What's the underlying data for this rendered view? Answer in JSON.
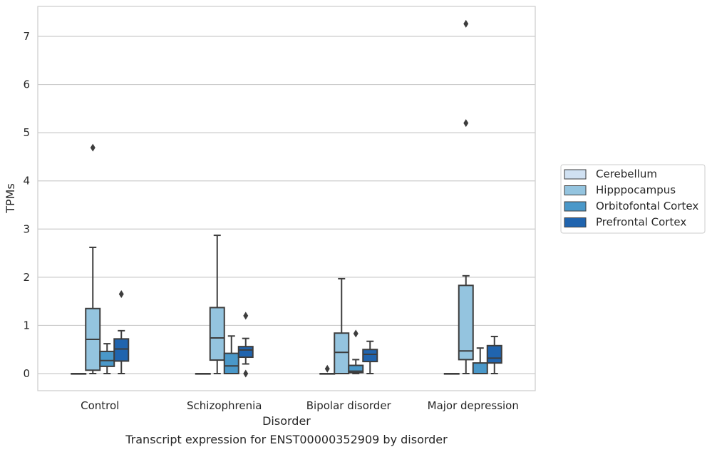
{
  "chart_data": {
    "type": "box",
    "caption": "Transcript expression for ENST00000352909 by disorder",
    "xlabel": "Disorder",
    "ylabel": "TPMs",
    "ylim": [
      -0.35,
      7.6
    ],
    "yticks": [
      "0",
      "1",
      "2",
      "3",
      "4",
      "5",
      "6",
      "7"
    ],
    "grid": true,
    "legend_position": "right",
    "categories": [
      "Control",
      "Schizophrenia",
      "Bipolar disorder",
      "Major depression"
    ],
    "series": [
      {
        "name": "Cerebellum",
        "color": "#d0e1f2",
        "boxes": [
          {
            "category": "Control",
            "q1": 0,
            "median": 0,
            "q3": 0,
            "whisker_low": 0,
            "whisker_high": 0,
            "outliers": []
          },
          {
            "category": "Schizophrenia",
            "q1": 0,
            "median": 0,
            "q3": 0,
            "whisker_low": 0,
            "whisker_high": 0,
            "outliers": []
          },
          {
            "category": "Bipolar disorder",
            "q1": 0,
            "median": 0,
            "q3": 0,
            "whisker_low": 0,
            "whisker_high": 0,
            "outliers": [
              0.1
            ]
          },
          {
            "category": "Major depression",
            "q1": 0,
            "median": 0,
            "q3": 0,
            "whisker_low": 0,
            "whisker_high": 0,
            "outliers": []
          }
        ]
      },
      {
        "name": "Hipppocampus",
        "color": "#94c4df",
        "boxes": [
          {
            "category": "Control",
            "q1": 0.07,
            "median": 0.71,
            "q3": 1.35,
            "whisker_low": 0,
            "whisker_high": 2.62,
            "outliers": [
              4.69
            ]
          },
          {
            "category": "Schizophrenia",
            "q1": 0.28,
            "median": 0.74,
            "q3": 1.37,
            "whisker_low": 0,
            "whisker_high": 2.87,
            "outliers": []
          },
          {
            "category": "Bipolar disorder",
            "q1": 0,
            "median": 0.44,
            "q3": 0.84,
            "whisker_low": 0,
            "whisker_high": 1.97,
            "outliers": []
          },
          {
            "category": "Major depression",
            "q1": 0.29,
            "median": 0.47,
            "q3": 1.83,
            "whisker_low": 0,
            "whisker_high": 2.03,
            "outliers": [
              5.2,
              7.26
            ]
          }
        ]
      },
      {
        "name": "Orbitofontal Cortex",
        "color": "#4a98c9",
        "boxes": [
          {
            "category": "Control",
            "q1": 0.15,
            "median": 0.27,
            "q3": 0.46,
            "whisker_low": 0,
            "whisker_high": 0.62,
            "outliers": []
          },
          {
            "category": "Schizophrenia",
            "q1": 0,
            "median": 0.16,
            "q3": 0.42,
            "whisker_low": 0,
            "whisker_high": 0.78,
            "outliers": []
          },
          {
            "category": "Bipolar disorder",
            "q1": 0.02,
            "median": 0.05,
            "q3": 0.17,
            "whisker_low": 0,
            "whisker_high": 0.29,
            "outliers": [
              0.83
            ]
          },
          {
            "category": "Major depression",
            "q1": 0,
            "median": 0,
            "q3": 0.22,
            "whisker_low": 0,
            "whisker_high": 0.53,
            "outliers": []
          }
        ]
      },
      {
        "name": "Prefrontal Cortex",
        "color": "#2064ae",
        "boxes": [
          {
            "category": "Control",
            "q1": 0.26,
            "median": 0.51,
            "q3": 0.72,
            "whisker_low": 0,
            "whisker_high": 0.89,
            "outliers": [
              1.65
            ]
          },
          {
            "category": "Schizophrenia",
            "q1": 0.34,
            "median": 0.49,
            "q3": 0.56,
            "whisker_low": 0.2,
            "whisker_high": 0.73,
            "outliers": [
              1.2,
              0
            ]
          },
          {
            "category": "Bipolar disorder",
            "q1": 0.25,
            "median": 0.4,
            "q3": 0.5,
            "whisker_low": 0,
            "whisker_high": 0.67,
            "outliers": []
          },
          {
            "category": "Major depression",
            "q1": 0.22,
            "median": 0.32,
            "q3": 0.58,
            "whisker_low": 0,
            "whisker_high": 0.77,
            "outliers": []
          }
        ]
      }
    ]
  }
}
